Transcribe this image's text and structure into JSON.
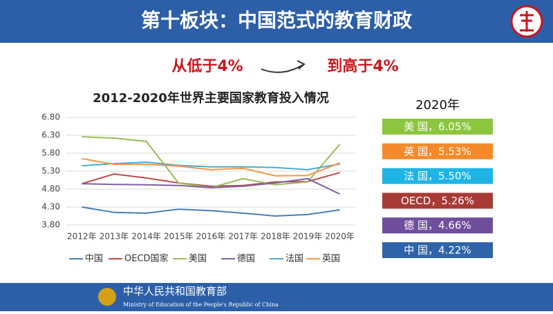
{
  "header": {
    "title": "第十板块：中国范式的教育财政"
  },
  "subtitle": {
    "left": "从低于4%",
    "right": "到高于4%"
  },
  "chart_data": {
    "type": "line",
    "title": "2012-2020年世界主要国家教育投入情况",
    "categories": [
      "2012年",
      "2013年",
      "2014年",
      "2015年",
      "2016年",
      "2017年",
      "2018年",
      "2019年",
      "2020年"
    ],
    "series": [
      {
        "name": "中国",
        "color": "#4a7ebb",
        "values": [
          4.3,
          4.15,
          4.13,
          4.24,
          4.2,
          4.13,
          4.05,
          4.09,
          4.22
        ]
      },
      {
        "name": "OECD国家",
        "color": "#be4b48",
        "values": [
          4.95,
          5.22,
          5.11,
          4.97,
          4.88,
          4.9,
          5.0,
          5.01,
          5.26
        ]
      },
      {
        "name": "美国",
        "color": "#9bbb59",
        "values": [
          6.26,
          6.22,
          6.13,
          4.97,
          4.84,
          5.09,
          4.92,
          5.0,
          6.05
        ]
      },
      {
        "name": "德国",
        "color": "#7d60a0",
        "values": [
          4.95,
          4.93,
          4.92,
          4.9,
          4.84,
          4.88,
          4.97,
          5.09,
          4.66
        ]
      },
      {
        "name": "法国",
        "color": "#4bacc6",
        "values": [
          5.45,
          5.51,
          5.55,
          5.46,
          5.42,
          5.42,
          5.4,
          5.34,
          5.5
        ]
      },
      {
        "name": "英国",
        "color": "#f79646",
        "values": [
          5.65,
          5.49,
          5.49,
          5.44,
          5.34,
          5.38,
          5.17,
          5.18,
          5.53
        ]
      }
    ],
    "ylim": [
      3.8,
      6.8
    ],
    "yticks": [
      {
        "value": 3.8,
        "label": "3.80"
      },
      {
        "value": 4.3,
        "label": "4.30"
      },
      {
        "value": 4.8,
        "label": "4.80"
      },
      {
        "value": 5.3,
        "label": "5.30"
      },
      {
        "value": 5.8,
        "label": "5.80"
      },
      {
        "value": 6.3,
        "label": "6.30"
      },
      {
        "value": 6.8,
        "label": "6.80"
      }
    ],
    "grid": true
  },
  "panel": {
    "heading": "2020年",
    "items": [
      {
        "text": "美 国，6.05%",
        "color": "#8cc63f"
      },
      {
        "text": "英 国，5.53%",
        "color": "#f58a2a"
      },
      {
        "text": "法 国，5.50%",
        "color": "#1fb4e6"
      },
      {
        "text": "OECD，5.26%",
        "color": "#a83a35"
      },
      {
        "text": "德 国，4.66%",
        "color": "#6f4e9c"
      },
      {
        "text": "中 国，4.22%",
        "color": "#2f64a8"
      }
    ]
  },
  "footer": {
    "name": "中华人民共和国教育部",
    "english": "Ministry of Education of the People's Republic of China"
  }
}
